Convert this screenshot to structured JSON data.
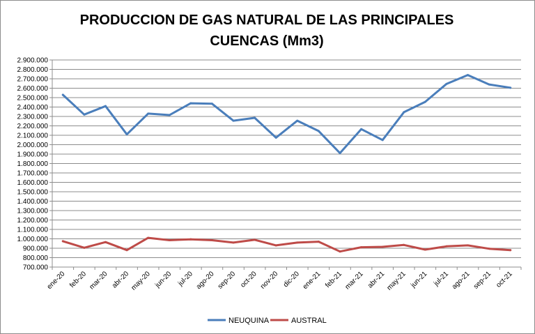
{
  "chart_data": {
    "type": "line",
    "title_line1": "PRODUCCION DE GAS NATURAL DE LAS PRINCIPALES",
    "title_line2": "CUENCAS (Mm3)",
    "xlabel": "",
    "ylabel": "",
    "ylim": [
      700000,
      2900000
    ],
    "y_ticks": [
      700000,
      800000,
      900000,
      1000000,
      1100000,
      1200000,
      1300000,
      1400000,
      1500000,
      1600000,
      1700000,
      1800000,
      1900000,
      2000000,
      2100000,
      2200000,
      2300000,
      2400000,
      2500000,
      2600000,
      2700000,
      2800000,
      2900000
    ],
    "y_tick_labels": [
      "700.000",
      "800.000",
      "900.000",
      "1.000.000",
      "1.100.000",
      "1.200.000",
      "1.300.000",
      "1.400.000",
      "1.500.000",
      "1.600.000",
      "1.700.000",
      "1.800.000",
      "1.900.000",
      "2.000.000",
      "2.100.000",
      "2.200.000",
      "2.300.000",
      "2.400.000",
      "2.500.000",
      "2.600.000",
      "2.700.000",
      "2.800.000",
      "2.900.000"
    ],
    "categories": [
      "ene-20",
      "feb-20",
      "mar-20",
      "abr-20",
      "may-20",
      "jun-20",
      "jul-20",
      "ago-20",
      "sep-20",
      "oct-20",
      "nov-20",
      "dic-20",
      "ene-21",
      "feb-21",
      "mar-21",
      "abr-21",
      "may-21",
      "jun-21",
      "jul-21",
      "ago-21",
      "sep-21",
      "oct-21"
    ],
    "series": [
      {
        "name": "NEUQUINA",
        "color": "#4a7ebb",
        "values": [
          2530000,
          2320000,
          2410000,
          2110000,
          2330000,
          2315000,
          2440000,
          2435000,
          2255000,
          2285000,
          2075000,
          2255000,
          2145000,
          1910000,
          2165000,
          2050000,
          2345000,
          2455000,
          2645000,
          2740000,
          2640000,
          2605000
        ]
      },
      {
        "name": "AUSTRAL",
        "color": "#be4b48",
        "values": [
          975000,
          905000,
          965000,
          880000,
          1010000,
          985000,
          995000,
          985000,
          960000,
          990000,
          930000,
          960000,
          970000,
          865000,
          910000,
          915000,
          935000,
          885000,
          920000,
          930000,
          895000,
          880000
        ]
      }
    ],
    "grid": true,
    "legend_position": "bottom"
  }
}
